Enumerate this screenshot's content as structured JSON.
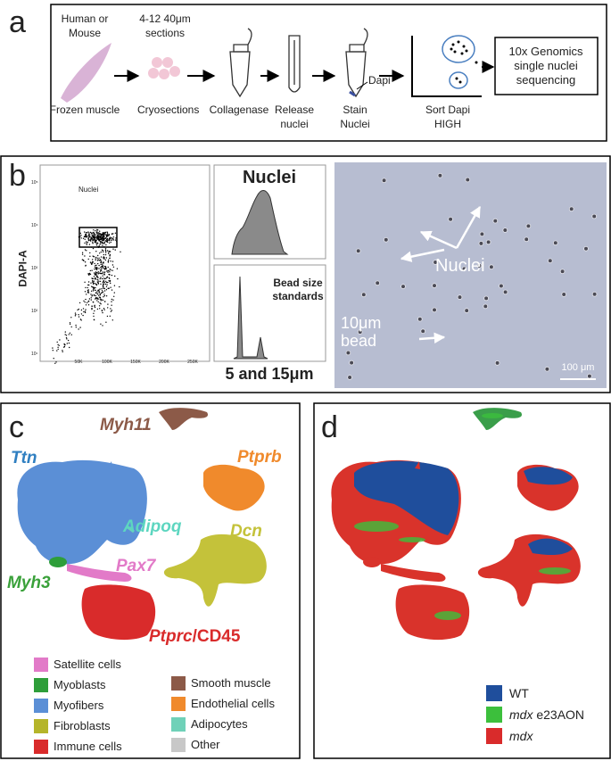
{
  "panel_a": {
    "label": "a",
    "steps": [
      {
        "top": "Human or Mouse",
        "bottom": "Frozen muscle"
      },
      {
        "top": "4-12 40μm sections",
        "bottom": "Cryosections"
      },
      {
        "bottom": "Collagenase"
      },
      {
        "bottom": "Release nuclei"
      },
      {
        "bottom": "Stain Nuclei",
        "stain": "Dapi"
      },
      {
        "bottom": "Sort Dapi HIGH"
      }
    ],
    "output": "10x Genomics single nuclei sequencing"
  },
  "panel_b": {
    "label": "b",
    "flow": {
      "gate": "Nuclei",
      "y_axis": "DAPI-A",
      "yticks": [
        "10⁵",
        "10⁴",
        "10³",
        "10²",
        "10¹"
      ],
      "xticks": [
        "50K",
        "100K",
        "150K",
        "200K",
        "250K"
      ]
    },
    "hist_top": "Nuclei",
    "hist_bottom": "Bead size standards",
    "hist_caption": "5 and 15μm",
    "image": {
      "nuclei": "Nuclei",
      "bead": "10μm bead",
      "scale": "100 μm"
    }
  },
  "panel_c": {
    "label": "c",
    "genes": [
      {
        "color": "#2f7fc1",
        "parts": [
          {
            "text": "Ttn",
            "italic": true
          }
        ]
      },
      {
        "color": "#8c5a48",
        "parts": [
          {
            "text": "Myh11",
            "italic": true
          }
        ]
      },
      {
        "color": "#f08a2c",
        "parts": [
          {
            "text": "Ptprb",
            "italic": true
          }
        ]
      },
      {
        "color": "#5dd6c0",
        "parts": [
          {
            "text": "Adipoq",
            "italic": true
          }
        ]
      },
      {
        "color": "#c4c23a",
        "parts": [
          {
            "text": "Dcn",
            "italic": true
          }
        ]
      },
      {
        "color": "#e27ac8",
        "parts": [
          {
            "text": "Pax7",
            "italic": true
          }
        ]
      },
      {
        "color": "#3aa13a",
        "parts": [
          {
            "text": "Myh3",
            "italic": true
          }
        ]
      },
      {
        "color": "#d92b2b",
        "parts": [
          {
            "text": "Ptprc",
            "italic": true
          },
          {
            "text": "/CD45",
            "italic": false
          }
        ]
      }
    ],
    "legend": [
      {
        "name": "Satellite cells",
        "color": "#e27ac8"
      },
      {
        "name": "Myoblasts",
        "color": "#2e9e3a"
      },
      {
        "name": "Myofibers",
        "color": "#5b8fd6"
      },
      {
        "name": "Fibroblasts",
        "color": "#b5b52a"
      },
      {
        "name": "Immune cells",
        "color": "#d92b2b"
      },
      {
        "name": "Smooth muscle",
        "color": "#8c5a48"
      },
      {
        "name": "Endothelial cells",
        "color": "#f08a2c"
      },
      {
        "name": "Adipocytes",
        "color": "#6fd1b8"
      },
      {
        "name": "Other",
        "color": "#c8c8c8"
      }
    ]
  },
  "panel_d": {
    "label": "d",
    "legend": [
      {
        "color": "#1f4e9c",
        "parts": [
          {
            "text": "WT",
            "italic": false
          }
        ]
      },
      {
        "color": "#3cbf3c",
        "parts": [
          {
            "text": "mdx",
            "italic": true
          },
          {
            "text": " e23AON",
            "italic": false
          }
        ]
      },
      {
        "color": "#d92b2b",
        "parts": [
          {
            "text": "mdx",
            "italic": true
          }
        ]
      }
    ]
  }
}
